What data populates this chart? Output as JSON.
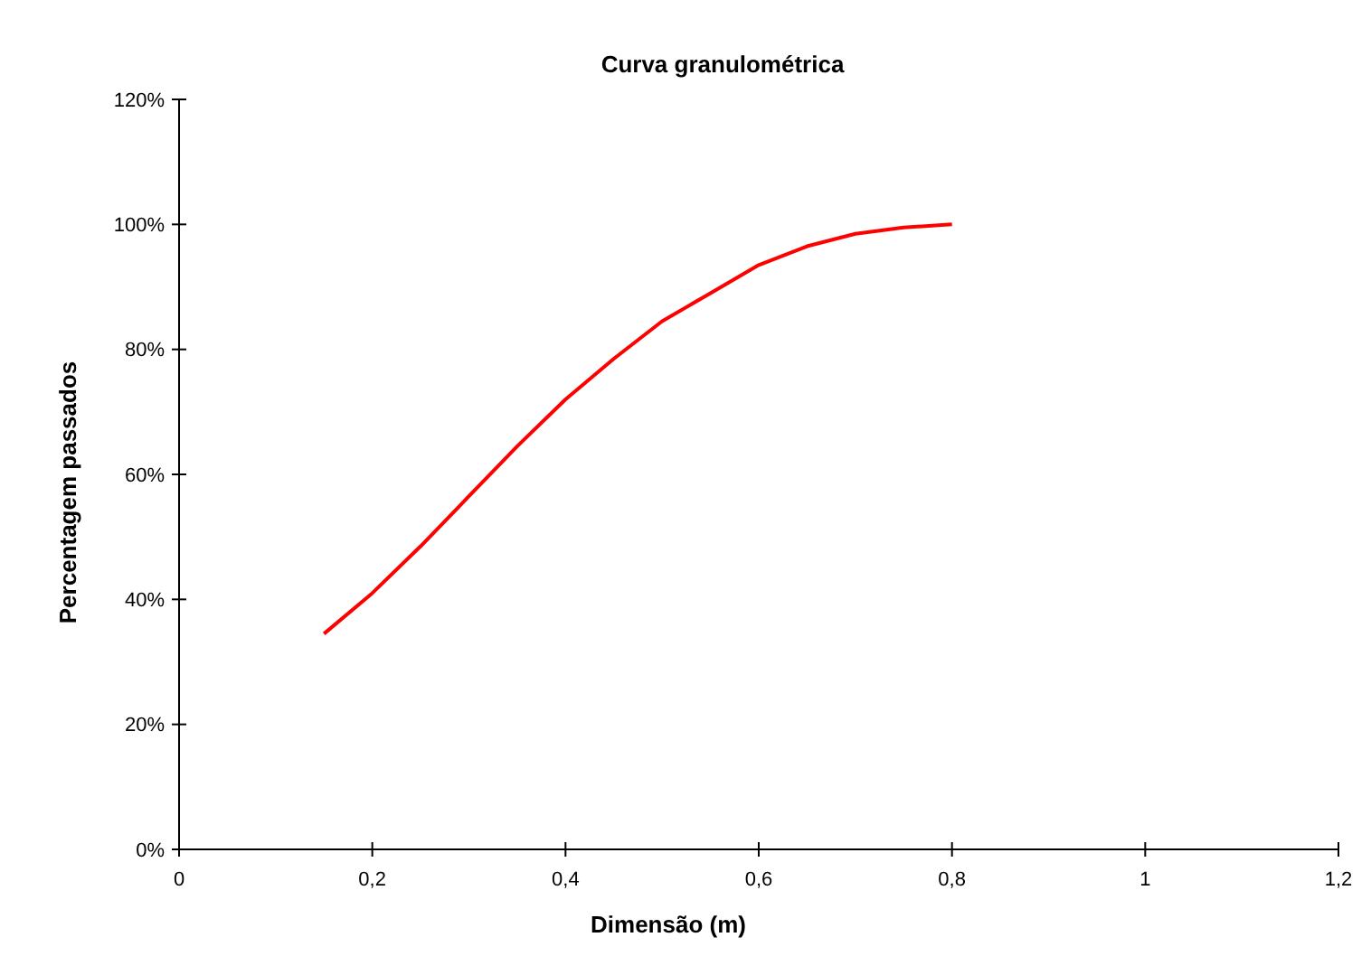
{
  "chart_data": {
    "type": "line",
    "title": "Curva granulométrica",
    "xlabel": "Dimensão (m)",
    "ylabel": "Percentagem passados",
    "x": [
      0.15,
      0.2,
      0.25,
      0.3,
      0.35,
      0.4,
      0.45,
      0.5,
      0.55,
      0.6,
      0.65,
      0.7,
      0.75,
      0.8
    ],
    "series": [
      {
        "color": "#ff0000",
        "values": [
          34.5,
          41,
          48.5,
          56.5,
          64.5,
          72,
          78.5,
          84.5,
          89,
          93.5,
          96.5,
          98.5,
          99.5,
          100
        ]
      }
    ],
    "xlim": [
      0,
      1.2
    ],
    "xticks": [
      0,
      {
        "value": 0.2,
        "label": "0,2"
      },
      {
        "value": 0.4,
        "label": "0,4"
      },
      {
        "value": 0.6,
        "label": "0,6"
      },
      {
        "value": 0.8,
        "label": "0,8"
      },
      1,
      {
        "value": 1.2,
        "label": "1,2"
      }
    ],
    "ylim": [
      0,
      120
    ],
    "yticks": [
      {
        "value": 0,
        "label": "0%"
      },
      {
        "value": 20,
        "label": "20%"
      },
      {
        "value": 40,
        "label": "40%"
      },
      {
        "value": 60,
        "label": "60%"
      },
      {
        "value": 80,
        "label": "80%"
      },
      {
        "value": 100,
        "label": "100%"
      },
      {
        "value": 120,
        "label": "120%"
      }
    ],
    "marker": "none",
    "line_style": "solid",
    "grid": false
  }
}
